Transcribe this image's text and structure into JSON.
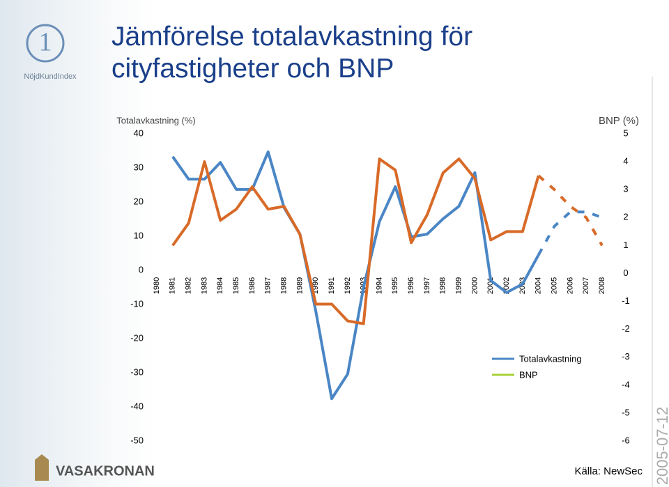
{
  "chart_data": {
    "type": "line",
    "title": "Jämförelse totalavkastning för cityfastigheter och BNP",
    "y_label": "Totalavkastning (%)",
    "y2_label": "BNP (%)",
    "categories": [
      "1980",
      "1981",
      "1982",
      "1983",
      "1984",
      "1985",
      "1986",
      "1987",
      "1988",
      "1989",
      "1990",
      "1991",
      "1992",
      "1993",
      "1994",
      "1995",
      "1996",
      "1997",
      "1998",
      "1999",
      "2000",
      "2001",
      "2002",
      "2003",
      "2004",
      "2005",
      "2006",
      "2007",
      "2008"
    ],
    "series": [
      {
        "name": "Totalavkastning",
        "color": "#4a86c5",
        "legend_color": "#4a86c5",
        "values": [
          null,
          33.3,
          26.7,
          26.7,
          31.6,
          23.7,
          23.7,
          34.7,
          18.4,
          10.6,
          -12,
          -37.6,
          -30.4,
          -5,
          14.3,
          24.5,
          9.8,
          10.6,
          15.1,
          18.8,
          28.6,
          -3,
          -6.5,
          -4,
          4.5,
          12.9,
          17.1,
          17.1,
          15.5
        ]
      },
      {
        "name": "BNP",
        "color": "#d86a28",
        "legend_color": "#a8d038",
        "axis": "y2",
        "values": [
          null,
          1.0,
          1.8,
          4.0,
          1.9,
          2.3,
          3.1,
          2.3,
          2.4,
          1.4,
          -1.1,
          -1.1,
          -1.7,
          -1.8,
          4.1,
          3.7,
          1.1,
          2.1,
          3.6,
          4.1,
          3.4,
          1.2,
          1.5,
          1.5,
          3.5,
          3.0,
          2.4,
          2.0,
          1.0
        ]
      }
    ],
    "dashed_from": "2004",
    "ylim": [
      -50,
      40
    ],
    "yticks": [
      -50,
      -40,
      -30,
      -20,
      -10,
      0,
      10,
      20,
      30,
      40
    ],
    "y2lim": [
      -6,
      5
    ],
    "y2ticks": [
      -6,
      -5,
      -4,
      -3,
      -2,
      -1,
      0,
      1,
      2,
      3,
      4,
      5
    ],
    "source": "Källa: NewSec"
  },
  "branding": {
    "logo_number": "1",
    "logo_text": "NöjdKundIndex",
    "company": "VASAKRONAN"
  },
  "date": "2005-07-12"
}
